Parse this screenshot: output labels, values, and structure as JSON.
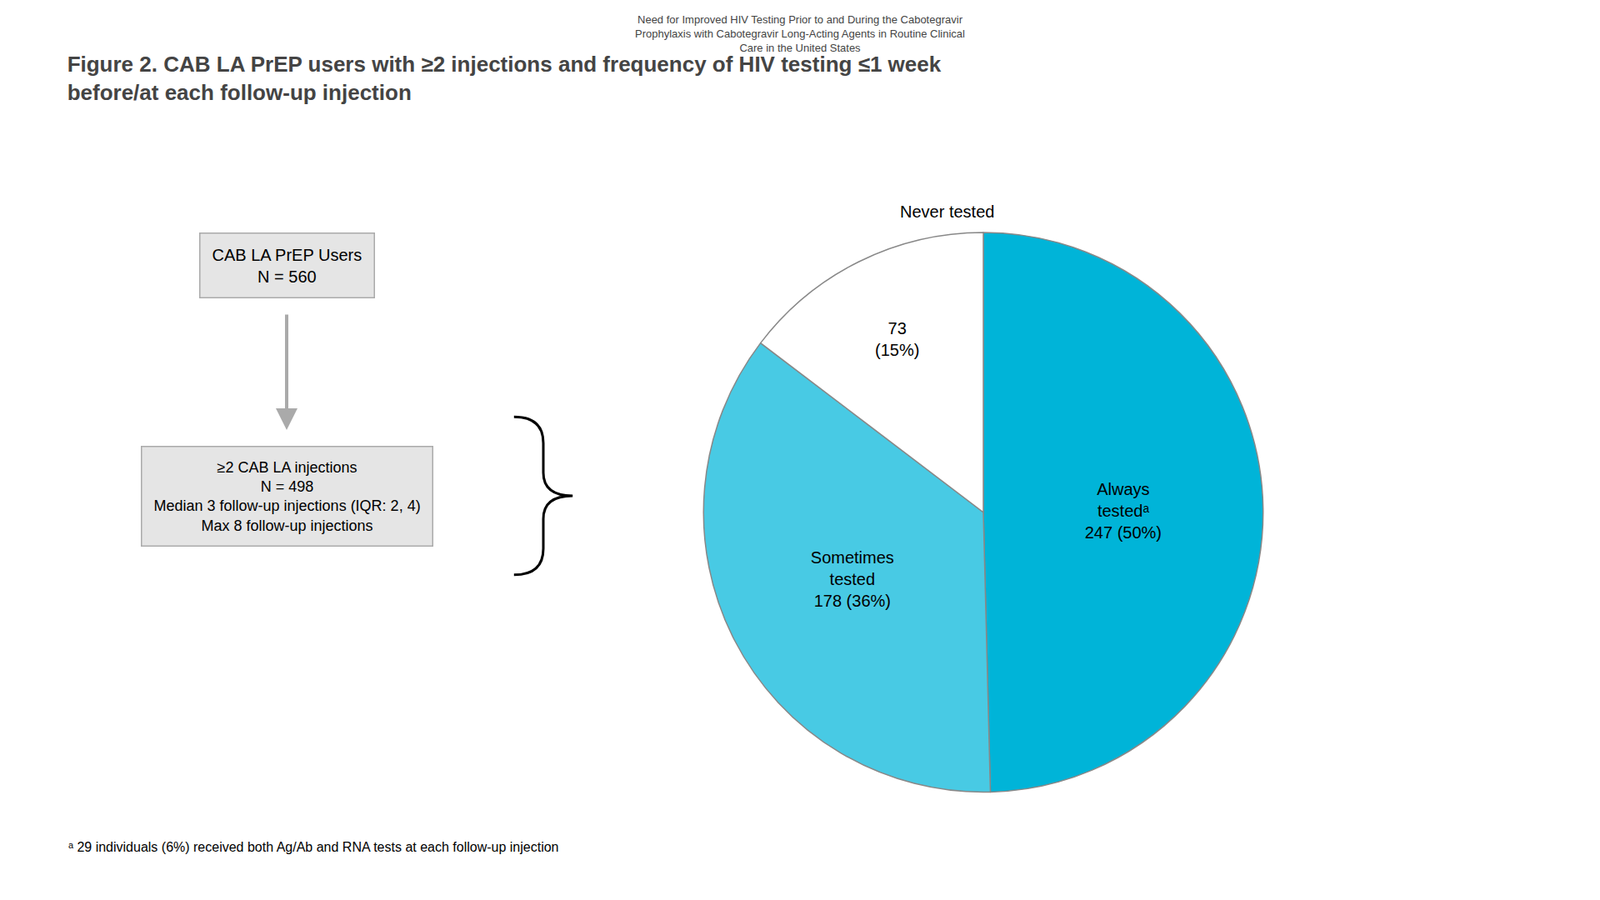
{
  "chart_data": {
    "type": "pie",
    "title": "Figure 2. CAB LA PrEP users with ≥2 injections and frequency of HIV testing ≤1 week\nbefore/at each follow-up injection",
    "values": [
      247,
      178,
      73
    ],
    "value_labels": [
      "Always\ntestedᵃ\n247 (50%)",
      "Sometimes\ntested\n178 (36%)",
      "73\n(15%)"
    ],
    "colors": [
      "#00B4D8",
      "#48CAE4",
      "#FFFFFF"
    ],
    "data_labels": true,
    "annotations": [
      "Need for Improved HIV Testing Prior to and During the Cabotegravir\nProphylaxis with Cabotegravir Long-Acting Agents in Routine Clinical\nCare in the United States",
      "CAB LA PrEP Users\nN = 560",
      "≥2 CAB LA injections\nN = 498\nMedian 3 follow-up injections (IQR: 2, 4)\nMax 8 follow-up injections",
      "Never tested",
      "ᵃ 29 individuals (6%) received both Ag/Ab and RNA tests at each follow-up injection"
    ]
  }
}
